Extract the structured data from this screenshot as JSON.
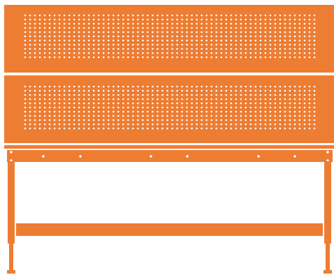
{
  "colors": {
    "frame": "#ED7D33",
    "frame_shade": "#D96C27",
    "hole": "#FFFFFF",
    "background": "#FFFFFF"
  },
  "product": {
    "kind": "workbench-with-pegboard",
    "pegboard_panels": 2,
    "hole_columns": 60,
    "hole_rows_per_panel": 11,
    "rail_mount_holes": 8
  }
}
